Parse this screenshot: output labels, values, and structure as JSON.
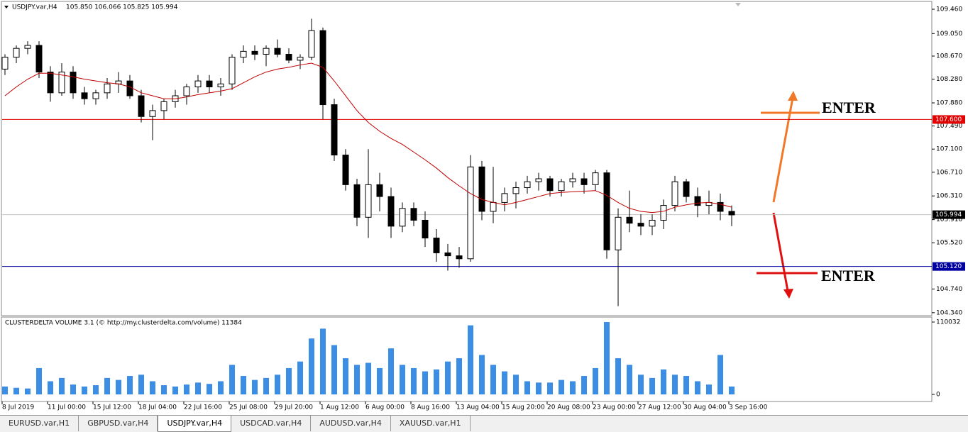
{
  "chart_data": [
    {
      "type": "candlestick",
      "title": "USDJPY.var,H4",
      "subtitle": "105.850 106.066 105.825 105.994",
      "categories": [
        "8 Jul 2019",
        null,
        null,
        null,
        "11 Jul 00:00",
        null,
        null,
        null,
        "15 Jul 12:00",
        null,
        null,
        null,
        "18 Jul 04:00",
        null,
        null,
        null,
        "22 Jul 16:00",
        null,
        null,
        null,
        "25 Jul 08:00",
        null,
        null,
        null,
        "29 Jul 20:00",
        null,
        null,
        null,
        "1 Aug 12:00",
        null,
        null,
        null,
        "6 Aug 00:00",
        null,
        null,
        null,
        "8 Aug 16:00",
        null,
        null,
        null,
        "13 Aug 04:00",
        null,
        null,
        null,
        "15 Aug 20:00",
        null,
        null,
        null,
        "20 Aug 08:00",
        null,
        null,
        null,
        "23 Aug 00:00",
        null,
        null,
        null,
        "27 Aug 12:00",
        null,
        null,
        null,
        "30 Aug 04:00",
        null,
        null,
        null,
        "3 Sep 16:00"
      ],
      "open": [
        108.45,
        108.65,
        108.8,
        108.85,
        108.4,
        108.05,
        108.4,
        108.05,
        107.95,
        108.05,
        108.2,
        108.25,
        108.0,
        107.65,
        107.75,
        107.9,
        108.0,
        108.15,
        108.25,
        108.15,
        108.2,
        108.65,
        108.75,
        108.7,
        108.8,
        108.7,
        108.6,
        108.65,
        109.1,
        107.85,
        107.0,
        106.5,
        105.95,
        106.5,
        106.3,
        105.8,
        106.1,
        105.9,
        105.6,
        105.35,
        105.3,
        105.25,
        106.8,
        106.05,
        106.2,
        106.35,
        106.45,
        106.55,
        106.6,
        106.4,
        106.55,
        106.6,
        106.5,
        106.7,
        105.4,
        105.95,
        105.85,
        105.8,
        105.9,
        106.15,
        106.55,
        106.3,
        106.15,
        106.2,
        106.05
      ],
      "high": [
        108.7,
        108.85,
        108.92,
        108.92,
        108.5,
        108.55,
        108.5,
        108.15,
        108.1,
        108.3,
        108.4,
        108.35,
        108.1,
        107.85,
        107.95,
        108.1,
        108.2,
        108.35,
        108.35,
        108.3,
        108.7,
        108.85,
        108.85,
        108.85,
        108.95,
        108.8,
        108.7,
        109.3,
        109.15,
        107.95,
        107.1,
        106.6,
        107.1,
        106.7,
        106.45,
        106.2,
        106.2,
        106.05,
        105.75,
        105.5,
        105.45,
        107.0,
        106.9,
        106.8,
        106.45,
        106.55,
        106.65,
        106.7,
        106.65,
        106.6,
        106.7,
        106.7,
        106.75,
        106.75,
        106.1,
        106.4,
        106.0,
        106.0,
        106.25,
        106.65,
        106.6,
        106.45,
        106.4,
        106.35,
        106.15
      ],
      "low": [
        108.35,
        108.55,
        108.7,
        108.3,
        107.9,
        108.0,
        107.95,
        107.85,
        107.85,
        107.95,
        108.05,
        107.95,
        107.55,
        107.25,
        107.6,
        107.8,
        107.85,
        108.05,
        108.05,
        108.0,
        108.1,
        108.55,
        108.6,
        108.5,
        108.65,
        108.55,
        108.45,
        108.6,
        107.6,
        106.9,
        106.4,
        105.8,
        105.6,
        106.05,
        105.6,
        105.7,
        105.8,
        105.45,
        105.2,
        105.05,
        105.1,
        105.2,
        105.9,
        105.85,
        106.05,
        106.1,
        106.35,
        106.4,
        106.3,
        106.3,
        106.45,
        106.35,
        106.4,
        105.25,
        104.45,
        105.7,
        105.65,
        105.65,
        105.75,
        106.05,
        106.2,
        105.95,
        106.0,
        105.9,
        105.8
      ],
      "close": [
        108.65,
        108.8,
        108.85,
        108.4,
        108.05,
        108.4,
        108.05,
        107.95,
        108.05,
        108.2,
        108.25,
        108.0,
        107.65,
        107.75,
        107.9,
        108.0,
        108.15,
        108.25,
        108.15,
        108.2,
        108.65,
        108.75,
        108.7,
        108.8,
        108.7,
        108.6,
        108.65,
        109.1,
        107.85,
        107.0,
        106.5,
        105.95,
        106.5,
        106.3,
        105.8,
        106.1,
        105.9,
        105.6,
        105.35,
        105.3,
        105.25,
        106.8,
        106.05,
        106.2,
        106.35,
        106.45,
        106.55,
        106.6,
        106.4,
        106.55,
        106.6,
        106.5,
        106.7,
        105.4,
        105.95,
        105.85,
        105.8,
        105.9,
        106.15,
        106.55,
        106.3,
        106.15,
        106.2,
        106.05,
        105.99
      ],
      "ma": {
        "color": "#c00000",
        "values": [
          108.0,
          108.15,
          108.28,
          108.38,
          108.38,
          108.35,
          108.32,
          108.28,
          108.25,
          108.22,
          108.2,
          108.15,
          108.05,
          108.0,
          107.95,
          107.95,
          107.98,
          108.02,
          108.05,
          108.08,
          108.12,
          108.22,
          108.32,
          108.4,
          108.45,
          108.48,
          108.52,
          108.55,
          108.48,
          108.25,
          108.0,
          107.75,
          107.55,
          107.4,
          107.28,
          107.18,
          107.05,
          106.92,
          106.78,
          106.62,
          106.48,
          106.35,
          106.25,
          106.2,
          106.16,
          106.2,
          106.25,
          106.3,
          106.35,
          106.37,
          106.38,
          106.39,
          106.4,
          106.32,
          106.2,
          106.1,
          106.05,
          106.03,
          106.05,
          106.12,
          106.16,
          106.19,
          106.2,
          106.17,
          106.12
        ]
      },
      "ylim": [
        104.29,
        109.58
      ],
      "yticks": [
        {
          "value": 109.46,
          "label": "109.460"
        },
        {
          "value": 109.05,
          "label": "109.050"
        },
        {
          "value": 108.67,
          "label": "108.670"
        },
        {
          "value": 108.28,
          "label": "108.280"
        },
        {
          "value": 107.88,
          "label": "107.880"
        },
        {
          "value": 107.49,
          "label": "107.490"
        },
        {
          "value": 107.1,
          "label": "107.100"
        },
        {
          "value": 106.71,
          "label": "106.710"
        },
        {
          "value": 106.31,
          "label": "106.310"
        },
        {
          "value": 105.91,
          "label": "105.910"
        },
        {
          "value": 105.52,
          "label": "105.520"
        },
        {
          "value": 104.74,
          "label": "104.740"
        },
        {
          "value": 104.34,
          "label": "104.340"
        }
      ],
      "levels": [
        {
          "value": 107.6,
          "label": "107.600",
          "color": "#e00000"
        },
        {
          "value": 105.12,
          "label": "105.120",
          "color": "#0000a0"
        },
        {
          "value": 105.994,
          "label": "105.994",
          "color": "#c0c0c0"
        }
      ],
      "annotations": [
        {
          "text": "ENTER",
          "color": "#f07828"
        },
        {
          "text": "ENTER",
          "color": "#e01010"
        }
      ]
    },
    {
      "type": "bar",
      "title": "CLUSTERDELTA VOLUME 3.1 (© http://my.clusterdelta.com/volume) 11384",
      "color": "#3a8ee6",
      "values": [
        12000,
        10000,
        9000,
        40000,
        20000,
        25000,
        15000,
        12000,
        14000,
        25000,
        22000,
        28000,
        30000,
        20000,
        14000,
        12000,
        15000,
        18000,
        16000,
        20000,
        45000,
        28000,
        22000,
        25000,
        30000,
        40000,
        50000,
        85000,
        100000,
        75000,
        55000,
        45000,
        48000,
        40000,
        70000,
        45000,
        40000,
        35000,
        38000,
        50000,
        55000,
        105000,
        60000,
        45000,
        35000,
        30000,
        20000,
        18000,
        18000,
        22000,
        20000,
        28000,
        40000,
        110000,
        55000,
        45000,
        30000,
        25000,
        38000,
        30000,
        28000,
        20000,
        15000,
        60000,
        12000
      ],
      "ylim": [
        0,
        110032
      ],
      "yticks": [
        0,
        110032
      ]
    }
  ],
  "tabs": [
    "EURUSD.var,H1",
    "GBPUSD.var,H4",
    "USDJPY.var,H4",
    "USDCAD.var,H4",
    "AUDUSD.var,H4",
    "XAUUSD.var,H1"
  ],
  "active_tab": 2
}
